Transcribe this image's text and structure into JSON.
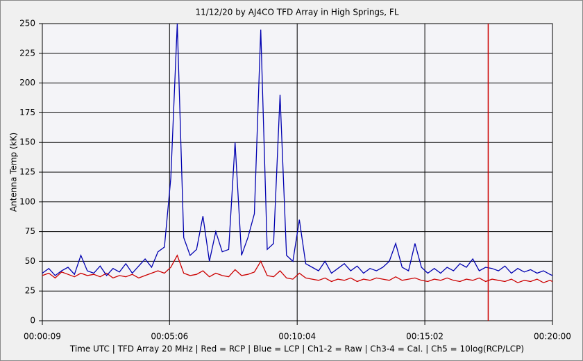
{
  "chart_data": {
    "type": "line",
    "title": "11/12/20  by  AJ4CO TFD Array  in  High Springs, FL",
    "y_label": "Antenna Temp (kK)",
    "x_label": "Time UTC | TFD Array 20 MHz | Red = RCP | Blue = LCP | Ch1-2 = Raw | Ch3-4 = Cal. | Ch5 = 10log(RCP/LCP)",
    "x": [
      9,
      24,
      39,
      54,
      69,
      84,
      99,
      114,
      129,
      144,
      159,
      174,
      189,
      204,
      219,
      234,
      249,
      264,
      279,
      294,
      309,
      324,
      339,
      354,
      369,
      384,
      399,
      414,
      429,
      444,
      459,
      474,
      489,
      504,
      519,
      534,
      549,
      564,
      579,
      594,
      609,
      624,
      639,
      654,
      669,
      684,
      699,
      714,
      729,
      744,
      759,
      774,
      789,
      804,
      819,
      834,
      849,
      864,
      879,
      894,
      909,
      924,
      939,
      954,
      969,
      984,
      999,
      1014,
      1029,
      1044,
      1059,
      1074,
      1089,
      1104,
      1119,
      1134,
      1149,
      1164,
      1179,
      1194,
      1200
    ],
    "series": [
      {
        "color": "#cc0000",
        "values": [
          38,
          40,
          36,
          41,
          39,
          37,
          40,
          38,
          39,
          37,
          40,
          36,
          38,
          37,
          39,
          36,
          38,
          40,
          42,
          40,
          45,
          55,
          40,
          38,
          39,
          42,
          37,
          40,
          38,
          37,
          43,
          38,
          39,
          41,
          50,
          38,
          37,
          42,
          36,
          35,
          40,
          36,
          35,
          34,
          36,
          33,
          35,
          34,
          36,
          33,
          35,
          34,
          36,
          35,
          34,
          37,
          34,
          35,
          36,
          34,
          33,
          35,
          34,
          36,
          34,
          33,
          35,
          34,
          36,
          33,
          35,
          34,
          33,
          35,
          32,
          34,
          33,
          35,
          32,
          34,
          33
        ]
      },
      {
        "color": "#0000b0",
        "values": [
          40,
          44,
          38,
          42,
          45,
          39,
          55,
          42,
          40,
          46,
          38,
          44,
          41,
          48,
          40,
          46,
          52,
          45,
          58,
          62,
          120,
          250,
          70,
          55,
          60,
          88,
          50,
          75,
          58,
          60,
          150,
          55,
          70,
          90,
          245,
          60,
          65,
          190,
          55,
          50,
          85,
          48,
          45,
          42,
          50,
          40,
          44,
          48,
          42,
          46,
          40,
          44,
          42,
          45,
          50,
          65,
          45,
          42,
          65,
          45,
          40,
          44,
          40,
          45,
          42,
          48,
          45,
          52,
          42,
          45,
          44,
          42,
          46,
          40,
          44,
          41,
          43,
          40,
          42,
          39,
          38
        ]
      }
    ],
    "marker": {
      "x": 1050,
      "color": "#cc0000"
    },
    "xlim": [
      9,
      1200
    ],
    "xticks": [
      {
        "value": 9,
        "label": "00:00:09"
      },
      {
        "value": 306,
        "label": "00:05:06"
      },
      {
        "value": 604,
        "label": "00:10:04"
      },
      {
        "value": 902,
        "label": "00:15:02"
      },
      {
        "value": 1200,
        "label": "00:20:00"
      }
    ],
    "ylim": [
      0,
      250
    ],
    "yticks": [
      0,
      25,
      50,
      75,
      100,
      125,
      150,
      175,
      200,
      225,
      250
    ],
    "grid": true
  }
}
